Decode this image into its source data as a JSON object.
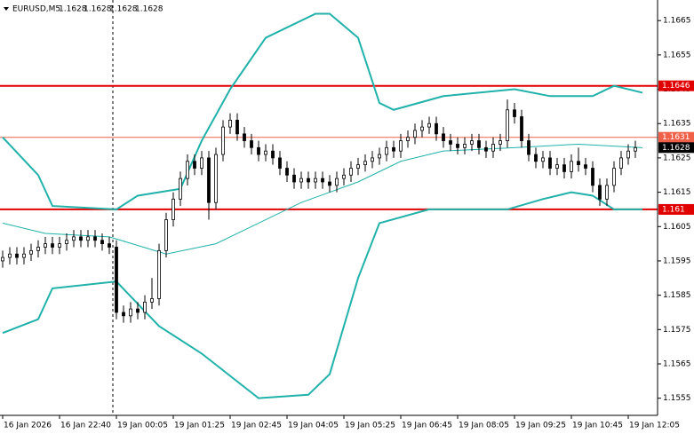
{
  "chart_data": {
    "type": "candlestick",
    "title": "EURUSD,M5",
    "header_prices": [
      1.1628,
      1.1628,
      1.1628,
      1.1628
    ],
    "ylim": [
      1.155,
      1.1671
    ],
    "yticks": [
      1.1555,
      1.1565,
      1.1575,
      1.1585,
      1.1595,
      1.1605,
      1.1615,
      1.1625,
      1.1635,
      1.1645,
      1.1655,
      1.1665
    ],
    "xlim": [
      -0.375,
      92.125
    ],
    "xticks": [
      {
        "value": 0,
        "label": "16 Jan 2026"
      },
      {
        "value": 8,
        "label": "16 Jan 22:40"
      },
      {
        "value": 16,
        "label": "19 Jan 00:05"
      },
      {
        "value": 24,
        "label": "19 Jan 01:25"
      },
      {
        "value": 32,
        "label": "19 Jan 02:45"
      },
      {
        "value": 40,
        "label": "19 Jan 04:05"
      },
      {
        "value": 48,
        "label": "19 Jan 05:25"
      },
      {
        "value": 56,
        "label": "19 Jan 06:45"
      },
      {
        "value": 64,
        "label": "19 Jan 08:05"
      },
      {
        "value": 72,
        "label": "19 Jan 09:25"
      },
      {
        "value": 80,
        "label": "19 Jan 10:45"
      },
      {
        "value": 88,
        "label": "19 Jan 12:05"
      }
    ],
    "separator_x": 15.5,
    "candles": {
      "open": [
        1.1595,
        1.1596,
        1.1597,
        1.1596,
        1.1597,
        1.1598,
        1.1599,
        1.16,
        1.1599,
        1.16,
        1.1601,
        1.1602,
        1.1601,
        1.1602,
        1.1601,
        1.16,
        1.1599,
        1.158,
        1.1579,
        1.1581,
        1.158,
        1.1583,
        1.1584,
        1.1598,
        1.1607,
        1.1613,
        1.1619,
        1.1624,
        1.1622,
        1.1625,
        1.1612,
        1.1626,
        1.1634,
        1.1636,
        1.1632,
        1.163,
        1.1628,
        1.1626,
        1.1627,
        1.1625,
        1.1622,
        1.162,
        1.1618,
        1.1619,
        1.1618,
        1.1619,
        1.1618,
        1.1617,
        1.1619,
        1.162,
        1.1622,
        1.1623,
        1.1624,
        1.1625,
        1.1626,
        1.1628,
        1.1627,
        1.163,
        1.1631,
        1.1633,
        1.1634,
        1.1635,
        1.1632,
        1.163,
        1.1629,
        1.1628,
        1.1629,
        1.163,
        1.1628,
        1.1627,
        1.1629,
        1.163,
        1.1639,
        1.1637,
        1.163,
        1.1626,
        1.1624,
        1.1625,
        1.1622,
        1.1623,
        1.1621,
        1.1624,
        1.1623,
        1.1622,
        1.1617,
        1.1613,
        1.1617,
        1.1622,
        1.1625,
        1.1627
      ],
      "high": [
        1.1598,
        1.1599,
        1.1599,
        1.1599,
        1.16,
        1.1601,
        1.1602,
        1.1602,
        1.1602,
        1.1603,
        1.1604,
        1.1604,
        1.1604,
        1.1604,
        1.1603,
        1.1602,
        1.1601,
        1.1582,
        1.1583,
        1.1583,
        1.1585,
        1.159,
        1.16,
        1.1609,
        1.1615,
        1.1621,
        1.1626,
        1.1626,
        1.1627,
        1.1627,
        1.1628,
        1.1636,
        1.1638,
        1.1638,
        1.1634,
        1.1632,
        1.163,
        1.1629,
        1.1629,
        1.1627,
        1.1624,
        1.1622,
        1.1621,
        1.1621,
        1.1621,
        1.1621,
        1.162,
        1.1621,
        1.1622,
        1.1624,
        1.1625,
        1.1626,
        1.1627,
        1.1628,
        1.163,
        1.163,
        1.1632,
        1.1633,
        1.1635,
        1.1636,
        1.1637,
        1.1637,
        1.1634,
        1.1632,
        1.1631,
        1.1631,
        1.1632,
        1.1632,
        1.163,
        1.1631,
        1.1632,
        1.1642,
        1.1641,
        1.1639,
        1.1632,
        1.1628,
        1.1627,
        1.1627,
        1.1625,
        1.1625,
        1.1626,
        1.1628,
        1.1625,
        1.1624,
        1.1619,
        1.1619,
        1.1624,
        1.1627,
        1.1629,
        1.163
      ],
      "low": [
        1.1593,
        1.1594,
        1.1594,
        1.1594,
        1.1595,
        1.1596,
        1.1597,
        1.1597,
        1.1597,
        1.1598,
        1.1599,
        1.1599,
        1.1599,
        1.1599,
        1.1598,
        1.1597,
        1.1578,
        1.1577,
        1.1577,
        1.1578,
        1.1578,
        1.1581,
        1.1582,
        1.1596,
        1.1605,
        1.1611,
        1.1617,
        1.162,
        1.162,
        1.1607,
        1.161,
        1.1624,
        1.1632,
        1.163,
        1.1628,
        1.1626,
        1.1624,
        1.1624,
        1.1623,
        1.162,
        1.1618,
        1.1616,
        1.1616,
        1.1616,
        1.1616,
        1.1616,
        1.1615,
        1.1615,
        1.1617,
        1.1618,
        1.162,
        1.1621,
        1.1622,
        1.1623,
        1.1624,
        1.1625,
        1.1625,
        1.1628,
        1.1629,
        1.1631,
        1.1632,
        1.163,
        1.1628,
        1.1627,
        1.1626,
        1.1626,
        1.1627,
        1.1626,
        1.1625,
        1.1625,
        1.1627,
        1.1628,
        1.1635,
        1.1628,
        1.1624,
        1.1622,
        1.1622,
        1.162,
        1.162,
        1.1619,
        1.1619,
        1.1621,
        1.162,
        1.1615,
        1.1611,
        1.1611,
        1.1615,
        1.162,
        1.1623,
        1.1625
      ],
      "close": [
        1.1596,
        1.1597,
        1.1596,
        1.1597,
        1.1598,
        1.1599,
        1.16,
        1.1599,
        1.16,
        1.1601,
        1.1602,
        1.1601,
        1.1602,
        1.1601,
        1.16,
        1.1599,
        1.158,
        1.1579,
        1.1581,
        1.158,
        1.1583,
        1.1584,
        1.1598,
        1.1607,
        1.1613,
        1.1619,
        1.1624,
        1.1622,
        1.1625,
        1.1612,
        1.1626,
        1.1634,
        1.1636,
        1.1632,
        1.163,
        1.1628,
        1.1626,
        1.1627,
        1.1625,
        1.1622,
        1.162,
        1.1618,
        1.1619,
        1.1618,
        1.1619,
        1.1618,
        1.1617,
        1.1619,
        1.162,
        1.1622,
        1.1623,
        1.1624,
        1.1625,
        1.1626,
        1.1628,
        1.1627,
        1.163,
        1.1631,
        1.1633,
        1.1634,
        1.1635,
        1.1632,
        1.163,
        1.1629,
        1.1628,
        1.1629,
        1.163,
        1.1628,
        1.1627,
        1.1629,
        1.163,
        1.1639,
        1.1637,
        1.163,
        1.1626,
        1.1624,
        1.1625,
        1.1622,
        1.1623,
        1.1621,
        1.1624,
        1.1623,
        1.1622,
        1.1617,
        1.1613,
        1.1617,
        1.1622,
        1.1625,
        1.1627,
        1.1628
      ],
      "bull_fill": "#ffffff",
      "bear_fill": "#000000",
      "color": "#000000"
    },
    "lines": [
      {
        "color": "#20b2aa",
        "width": 2,
        "x": [
          0,
          5,
          7,
          16,
          19,
          25,
          28,
          32,
          37,
          44,
          46,
          50,
          53,
          55,
          62,
          72,
          77,
          83,
          86,
          90
        ],
        "values": [
          1.1631,
          1.162,
          1.1611,
          1.161,
          1.1614,
          1.1616,
          1.163,
          1.1645,
          1.166,
          1.1667,
          1.1667,
          1.166,
          1.1641,
          1.1639,
          1.1643,
          1.1645,
          1.1643,
          1.1643,
          1.1646,
          1.1644
        ]
      },
      {
        "color": "#20b2aa",
        "width": 1,
        "x": [
          0,
          6,
          15,
          23,
          30,
          35,
          42,
          50,
          56,
          62,
          72,
          81,
          90
        ],
        "values": [
          1.1606,
          1.1603,
          1.1602,
          1.1597,
          1.16,
          1.1605,
          1.1612,
          1.1618,
          1.1624,
          1.1627,
          1.1628,
          1.1629,
          1.1628
        ]
      },
      {
        "color": "#20b2aa",
        "width": 2,
        "x": [
          0,
          5,
          7,
          16,
          22,
          28,
          36,
          43,
          46,
          50,
          53,
          60,
          71,
          76,
          80,
          83,
          86,
          90
        ],
        "values": [
          1.1574,
          1.1578,
          1.1587,
          1.1589,
          1.1576,
          1.1568,
          1.1555,
          1.1556,
          1.1562,
          1.159,
          1.1606,
          1.161,
          1.161,
          1.1613,
          1.1615,
          1.1614,
          1.161,
          1.161
        ]
      }
    ],
    "levels": [
      {
        "value": 1.1646,
        "color": "#e00000",
        "width": 2
      },
      {
        "value": 1.1631,
        "color": "#f06048",
        "width": 1
      },
      {
        "value": 1.161,
        "color": "#e00000",
        "width": 2
      }
    ],
    "current_price": {
      "value": 1.1628,
      "color": "#000000"
    }
  }
}
